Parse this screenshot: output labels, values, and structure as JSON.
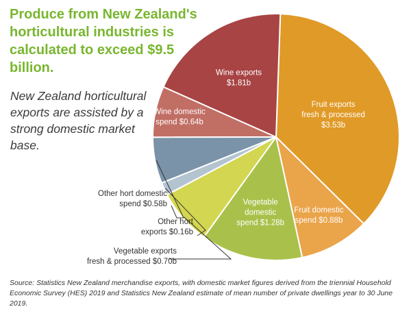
{
  "headline": "Produce from New Zealand's horticultural industries is calculated to exceed $9.5 billion.",
  "subhead": "New Zealand horticultural exports are assisted by a strong domestic market base.",
  "source": "Source: Statistics New Zealand merchandise exports, with domestic market figures derived from the triennial Household Economic Survey (HES) 2019 and Statistics New Zealand estimate of mean number of private dwellings year to 30 June 2019.",
  "chart_data": {
    "type": "pie",
    "title": "",
    "unit": "$b",
    "slices": [
      {
        "category": "Fruit exports fresh & processed",
        "value": 3.53,
        "label": [
          "Fruit exports",
          "fresh & processed",
          "$3.53b"
        ],
        "color": "#e09a27",
        "label_style": "inside"
      },
      {
        "category": "Fruit domestic spend",
        "value": 0.88,
        "label": [
          "Fruit domestic",
          "spend $0.88b"
        ],
        "color": "#eaa44a",
        "label_style": "inside"
      },
      {
        "category": "Vegetable domestic spend",
        "value": 1.28,
        "label": [
          "Vegetable",
          "domestic",
          "spend $1.28b"
        ],
        "color": "#a9c14b",
        "label_style": "inside"
      },
      {
        "category": "Vegetable exports fresh & processed",
        "value": 0.7,
        "label": [
          "Vegetable exports",
          "fresh & processed $0.70b"
        ],
        "color": "#d3d650",
        "label_style": "callout"
      },
      {
        "category": "Other hort exports",
        "value": 0.16,
        "label": [
          "Other hort",
          "exports $0.16b"
        ],
        "color": "#b3c4d0",
        "label_style": "callout"
      },
      {
        "category": "Other hort domestic spend",
        "value": 0.58,
        "label": [
          "Other hort domestic",
          "spend $0.58b"
        ],
        "color": "#7a93a8",
        "label_style": "callout"
      },
      {
        "category": "Wine domestic spend",
        "value": 0.64,
        "label": [
          "Wine domestic",
          "spend $0.64b"
        ],
        "color": "#c16e65",
        "label_style": "inside"
      },
      {
        "category": "Wine exports",
        "value": 1.81,
        "label": [
          "Wine exports",
          "$1.81b"
        ],
        "color": "#a84444",
        "label_style": "inside"
      }
    ]
  }
}
